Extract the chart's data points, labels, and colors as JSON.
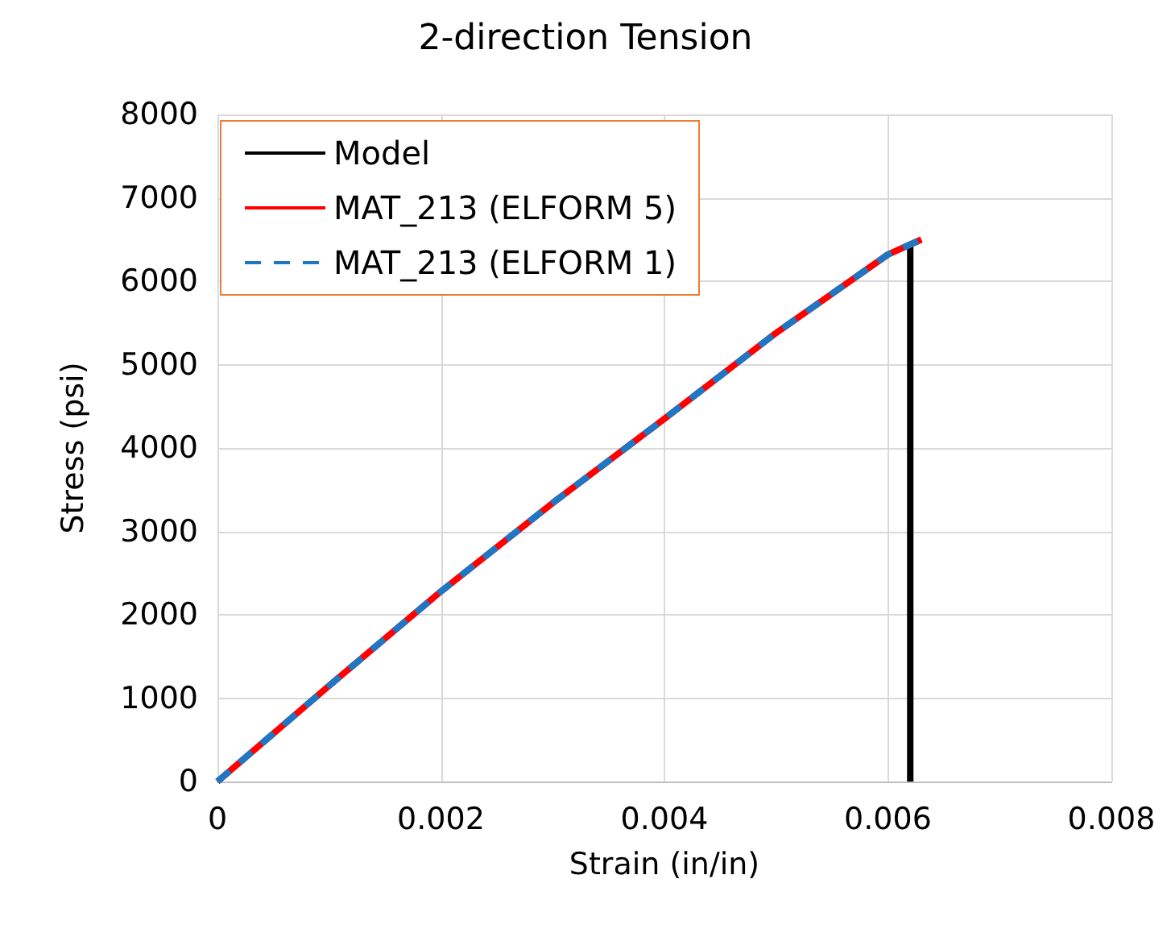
{
  "chart_data": {
    "type": "line",
    "title": "2-direction Tension",
    "xlabel": "Strain (in/in)",
    "ylabel": "Stress (psi)",
    "xlim": [
      0,
      0.008
    ],
    "xticks": [
      0,
      0.002,
      0.004,
      0.006,
      0.008
    ],
    "ylim": [
      0,
      8000
    ],
    "yticks": [
      0,
      1000,
      2000,
      3000,
      4000,
      5000,
      6000,
      7000,
      8000
    ],
    "grid": true,
    "legend": "top left",
    "marker": "none",
    "series": [
      {
        "name": "Model",
        "color": "#000000",
        "line_style": "solid",
        "x": [
          0.0062,
          0.0062
        ],
        "values": [
          6450,
          0
        ]
      },
      {
        "name": "MAT_213 (ELFORM 5)",
        "color": "#ff0000",
        "line_style": "solid",
        "x": [
          0,
          0.001,
          0.002,
          0.003,
          0.004,
          0.005,
          0.006,
          0.0063
        ],
        "values": [
          0,
          1150,
          2280,
          3340,
          4350,
          5380,
          6320,
          6500
        ]
      },
      {
        "name": "MAT_213 (ELFORM 1)",
        "color": "#1f77c4",
        "line_style": "dashed",
        "x": [
          0,
          0.001,
          0.002,
          0.003,
          0.004,
          0.005,
          0.006,
          0.0063
        ],
        "values": [
          0,
          1150,
          2280,
          3340,
          4350,
          5380,
          6320,
          6500
        ]
      }
    ]
  }
}
